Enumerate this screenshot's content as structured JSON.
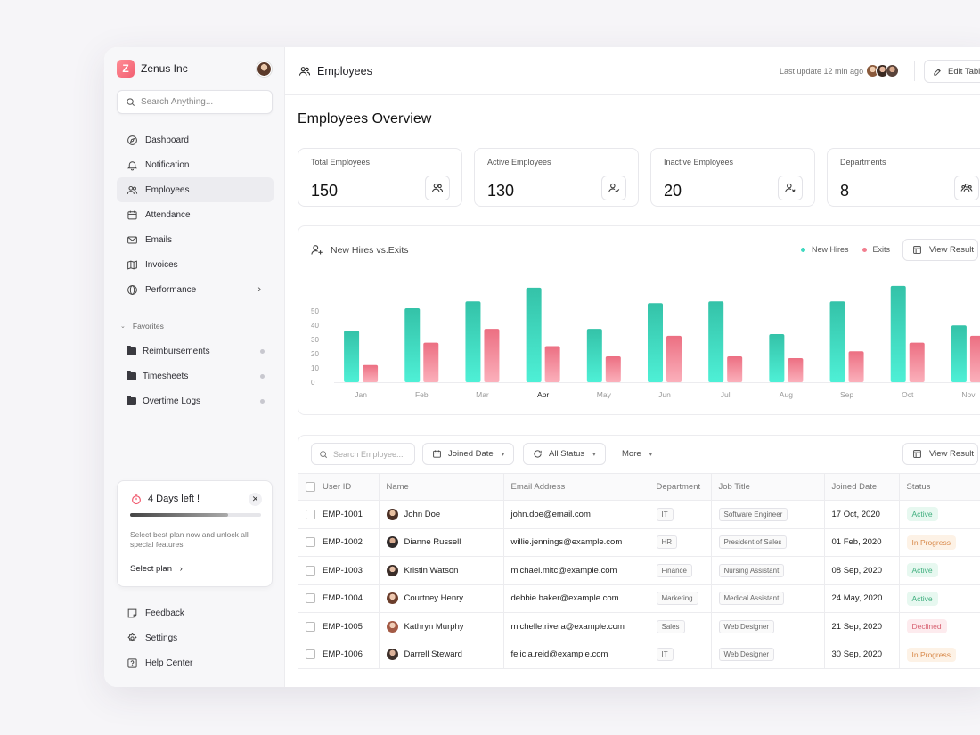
{
  "brand": {
    "name": "Zenus Inc",
    "logo_letter": "Z"
  },
  "search": {
    "placeholder": "Search Anything..."
  },
  "nav": [
    {
      "label": "Dashboard",
      "icon": "compass-icon"
    },
    {
      "label": "Notification",
      "icon": "bell-icon"
    },
    {
      "label": "Employees",
      "icon": "users-icon",
      "active": true
    },
    {
      "label": "Attendance",
      "icon": "calendar-icon"
    },
    {
      "label": "Emails",
      "icon": "mail-icon"
    },
    {
      "label": "Invoices",
      "icon": "map-icon"
    },
    {
      "label": "Performance",
      "icon": "globe-icon",
      "chevron": "›"
    }
  ],
  "favorites": {
    "title": "Favorites",
    "items": [
      "Reimbursements",
      "Timesheets",
      "Overtime Logs"
    ]
  },
  "trial": {
    "title": "4 Days left !",
    "close": "✕",
    "progress": 0.75,
    "description": "Select best plan now and unlock all special features",
    "link": "Select plan",
    "link_arrow": "›"
  },
  "bottom_nav": [
    {
      "label": "Feedback",
      "icon": "feedback-icon"
    },
    {
      "label": "Settings",
      "icon": "settings-icon"
    },
    {
      "label": "Help Center",
      "icon": "help-icon"
    }
  ],
  "topbar": {
    "page": "Employees",
    "last_update": "Last update 12 min ago",
    "edit_label": "Edit Table"
  },
  "overview_title": "Employees Overview",
  "stats": [
    {
      "label": "Total Employees",
      "value": "150"
    },
    {
      "label": "Active Employees",
      "value": "130"
    },
    {
      "label": "Inactive Employees",
      "value": "20"
    },
    {
      "label": "Departments",
      "value": "8"
    }
  ],
  "chart_card": {
    "title": "New Hires vs.Exits",
    "view_label": "View Result"
  },
  "colors": {
    "new_hires": "#3fd8c0",
    "exits": "#f27e8f"
  },
  "chart_data": {
    "type": "bar",
    "title": "New Hires vs.Exits",
    "categories": [
      "Jan",
      "Feb",
      "Mar",
      "Apr",
      "May",
      "Jun",
      "Jul",
      "Aug",
      "Sep",
      "Oct",
      "Nov"
    ],
    "series": [
      {
        "name": "New Hires",
        "values": [
          30,
          43,
          47,
          55,
          31,
          46,
          47,
          28,
          47,
          56,
          33
        ]
      },
      {
        "name": "Exits",
        "values": [
          10,
          23,
          31,
          21,
          15,
          27,
          15,
          14,
          18,
          23,
          27
        ]
      }
    ],
    "yticks": [
      0,
      10,
      20,
      30,
      40,
      50
    ],
    "ylim": [
      0,
      60
    ],
    "grid": false,
    "legend": "top-right"
  },
  "table": {
    "search_placeholder": "Search Employee...",
    "filters": [
      "Joined Date",
      "All Status",
      "More"
    ],
    "view_label": "View Result",
    "columns": [
      "User ID",
      "Name",
      "Email Address",
      "Department",
      "Job Title",
      "Joined Date",
      "Status"
    ],
    "rows": [
      {
        "id": "EMP-1001",
        "name": "John Doe",
        "email": "john.doe@email.com",
        "department": "IT",
        "title": "Software Engineer",
        "joined": "17 Oct, 2020",
        "status": "Active"
      },
      {
        "id": "EMP-1002",
        "name": "Dianne Russell",
        "email": "willie.jennings@example.com",
        "department": "HR",
        "title": "President of Sales",
        "joined": "01 Feb, 2020",
        "status": "In Progress"
      },
      {
        "id": "EMP-1003",
        "name": "Kristin Watson",
        "email": "michael.mitc@example.com",
        "department": "Finance",
        "title": "Nursing Assistant",
        "joined": "08 Sep, 2020",
        "status": "Active"
      },
      {
        "id": "EMP-1004",
        "name": "Courtney Henry",
        "email": "debbie.baker@example.com",
        "department": "Marketing",
        "title": "Medical Assistant",
        "joined": "24 May, 2020",
        "status": "Active"
      },
      {
        "id": "EMP-1005",
        "name": "Kathryn Murphy",
        "email": "michelle.rivera@example.com",
        "department": "Sales",
        "title": "Web Designer",
        "joined": "21 Sep, 2020",
        "status": "Declined"
      },
      {
        "id": "EMP-1006",
        "name": "Darrell Steward",
        "email": "felicia.reid@example.com",
        "department": "IT",
        "title": "Web Designer",
        "joined": "30 Sep, 2020",
        "status": "In Progress"
      }
    ]
  }
}
